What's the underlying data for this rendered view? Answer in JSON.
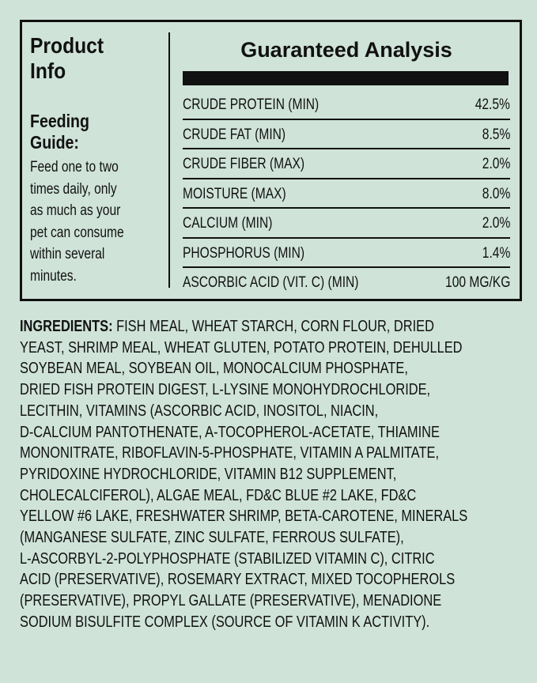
{
  "product_info": {
    "title_line1": "Product",
    "title_line2": "Info",
    "feeding_title_line1": "Feeding",
    "feeding_title_line2": "Guide:",
    "feeding_lines": [
      "Feed one to two",
      "times daily, only",
      "as much as your",
      "pet can consume",
      "within several",
      "minutes."
    ]
  },
  "guaranteed_analysis": {
    "title": "Guaranteed Analysis",
    "rows": [
      {
        "label": "CRUDE PROTEIN (MIN)",
        "value": "42.5%"
      },
      {
        "label": "CRUDE FAT (MIN)",
        "value": "8.5%"
      },
      {
        "label": "CRUDE FIBER (MAX)",
        "value": "2.0%"
      },
      {
        "label": "MOISTURE (MAX)",
        "value": "8.0%"
      },
      {
        "label": "CALCIUM (MIN)",
        "value": "2.0%"
      },
      {
        "label": "PHOSPHORUS (MIN)",
        "value": "1.4%"
      },
      {
        "label": "ASCORBIC ACID (VIT. C) (MIN)",
        "value": "100 MG/KG"
      }
    ]
  },
  "ingredients": {
    "label": "INGREDIENTS:",
    "lines": [
      " FISH MEAL, WHEAT STARCH, CORN FLOUR, DRIED",
      "YEAST, SHRIMP MEAL, WHEAT GLUTEN, POTATO PROTEIN, DEHULLED",
      "SOYBEAN MEAL, SOYBEAN OIL, MONOCALCIUM PHOSPHATE,",
      "DRIED FISH PROTEIN DIGEST, L-LYSINE MONOHYDROCHLORIDE,",
      "LECITHIN, VITAMINS (ASCORBIC ACID, INOSITOL, NIACIN,",
      "D-CALCIUM PANTOTHENATE, A-TOCOPHEROL-ACETATE, THIAMINE",
      "MONONITRATE, RIBOFLAVIN-5-PHOSPHATE, VITAMIN A PALMITATE,",
      "PYRIDOXINE HYDROCHLORIDE, VITAMIN B12 SUPPLEMENT,",
      "CHOLECALCIFEROL), ALGAE MEAL, FD&C BLUE #2 LAKE, FD&C",
      "YELLOW #6 LAKE, FRESHWATER SHRIMP, BETA-CAROTENE, MINERALS",
      "(MANGANESE SULFATE, ZINC SULFATE, FERROUS SULFATE),",
      "L-ASCORBYL-2-POLYPHOSPHATE (STABILIZED VITAMIN C), CITRIC",
      "ACID (PRESERVATIVE), ROSEMARY EXTRACT, MIXED TOCOPHEROLS",
      "(PRESERVATIVE), PROPYL GALLATE (PRESERVATIVE), MENADIONE",
      "SODIUM BISULFITE COMPLEX (SOURCE OF VITAMIN K ACTIVITY)."
    ]
  }
}
